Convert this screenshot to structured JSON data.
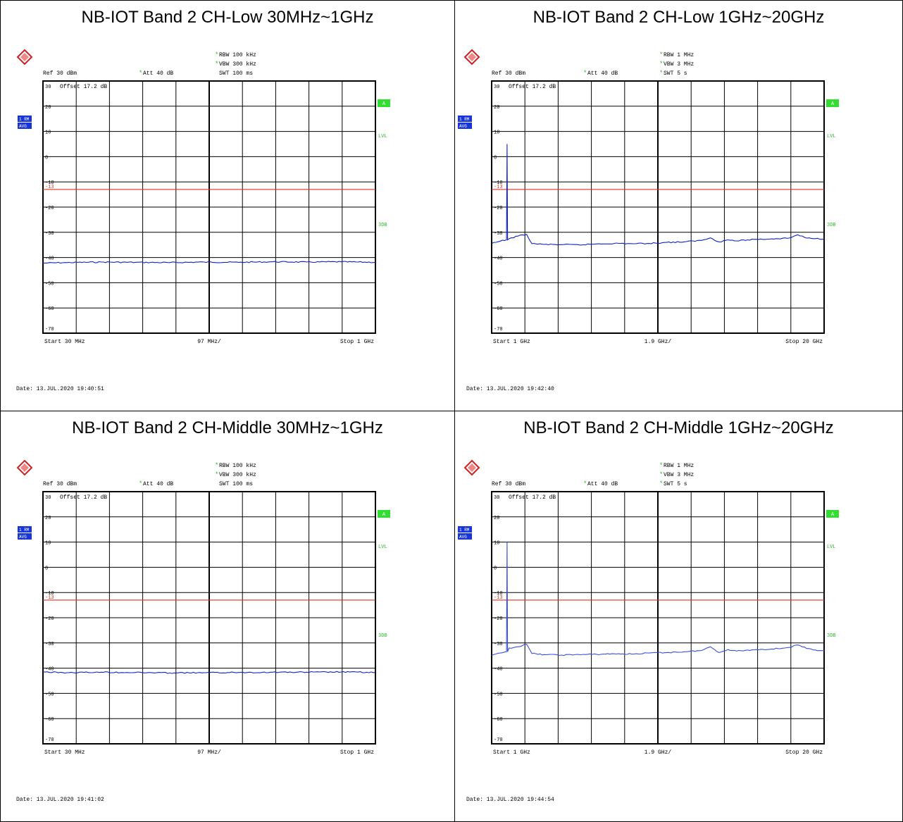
{
  "colors": {
    "trace": "#1020c8",
    "trace_light": "#3a4fd8",
    "limit": "#e03020",
    "grid": "#000000",
    "green_label": "#2ab82a",
    "badge_blue": "#1836d8",
    "badge_green": "#33dd33"
  },
  "panels": [
    {
      "title": "NB-IOT Band 2 CH-Low 30MHz~1GHz",
      "rbw": "RBW 100 kHz",
      "vbw": "VBW 300 kHz",
      "swt": "SWT 100 ms",
      "ref": "Ref  30 dBm",
      "att": "Att  40 dB",
      "offset": "Offset   17.2 dB",
      "start": "Start  30 MHz",
      "div": "97 MHz/",
      "stop": "Stop  1 GHz",
      "date": "Date: 13.JUL.2020  19:40:51",
      "trace_label": "1 RM",
      "detector": "AVG",
      "badge_a": "A",
      "lvl": "LVL",
      "threedb": "3DB",
      "y_ticks": [
        "30",
        "20",
        "10",
        "0",
        "-10",
        "-20",
        "-30",
        "-40",
        "-50",
        "-60",
        "-70"
      ],
      "limit_label": "-13",
      "icon": "rohde-schwarz-logo-icon",
      "chart_data": {
        "type": "line",
        "x_unit": "MHz",
        "x_range": [
          30,
          1000
        ],
        "y_unit": "dBm",
        "ylim": [
          -70,
          30
        ],
        "limit_line": -13,
        "series": [
          {
            "x": [
              30,
              100,
              200,
              300,
              400,
              500,
              600,
              700,
              800,
              900,
              1000
            ],
            "y": [
              -42.2,
              -42.0,
              -41.8,
              -41.9,
              -42.0,
              -41.8,
              -41.9,
              -41.7,
              -41.8,
              -41.7,
              -41.9
            ]
          }
        ]
      }
    },
    {
      "title": "NB-IOT Band 2 CH-Low 1GHz~20GHz",
      "rbw": "RBW 1 MHz",
      "vbw": "VBW 3 MHz",
      "swt": "SWT 5 s",
      "ref": "Ref  30 dBm",
      "att": "Att  40 dB",
      "offset": "Offset   17.2 dB",
      "start": "Start  1 GHz",
      "div": "1.9 GHz/",
      "stop": "Stop  20 GHz",
      "date": "Date: 13.JUL.2020  19:42:40",
      "trace_label": "1 RM",
      "detector": "AVG",
      "badge_a": "A",
      "lvl": "LVL",
      "threedb": "3DB",
      "y_ticks": [
        "30",
        "20",
        "10",
        "0",
        "-10",
        "-20",
        "-30",
        "-40",
        "-50",
        "-60",
        "-70"
      ],
      "limit_label": "-13",
      "icon": "rohde-schwarz-logo-icon",
      "chart_data": {
        "type": "line",
        "x_unit": "GHz",
        "x_range": [
          1,
          20
        ],
        "y_unit": "dBm",
        "ylim": [
          -70,
          30
        ],
        "limit_line": -13,
        "series": [
          {
            "x": [
              1,
              1.5,
              1.85,
              1.88,
              1.91,
              2.0,
              2.5,
              3.0,
              3.3,
              4,
              5,
              6,
              7,
              8,
              9,
              10,
              11,
              12,
              13,
              13.5,
              14,
              14.5,
              15,
              16,
              17,
              18,
              18.5,
              19,
              19.5,
              20
            ],
            "y": [
              -34.5,
              -33.5,
              -33.0,
              5.0,
              -33.0,
              -32.5,
              -31.5,
              -30.8,
              -34.5,
              -34.8,
              -34.9,
              -35.0,
              -34.6,
              -34.4,
              -34.5,
              -34.4,
              -34.0,
              -33.8,
              -33.2,
              -32.2,
              -33.8,
              -33.0,
              -33.4,
              -32.8,
              -32.6,
              -32.3,
              -31.0,
              -32.3,
              -32.5,
              -32.6
            ]
          }
        ]
      }
    },
    {
      "title": "NB-IOT Band 2 CH-Middle 30MHz~1GHz",
      "rbw": "RBW 100 kHz",
      "vbw": "VBW 300 kHz",
      "swt": "SWT 100 ms",
      "ref": "Ref  30 dBm",
      "att": "Att  40 dB",
      "offset": "Offset   17.2 dB",
      "start": "Start  30 MHz",
      "div": "97 MHz/",
      "stop": "Stop  1 GHz",
      "date": "Date: 13.JUL.2020  19:41:02",
      "trace_label": "1 RM",
      "detector": "AVG",
      "badge_a": "A",
      "lvl": "LVL",
      "threedb": "3DB",
      "y_ticks": [
        "30",
        "20",
        "10",
        "0",
        "-10",
        "-20",
        "-30",
        "-40",
        "-50",
        "-60",
        "-70"
      ],
      "limit_label": "-13",
      "icon": "rohde-schwarz-logo-icon",
      "chart_data": {
        "type": "line",
        "x_unit": "MHz",
        "x_range": [
          30,
          1000
        ],
        "y_unit": "dBm",
        "ylim": [
          -70,
          30
        ],
        "limit_line": -13,
        "series": [
          {
            "x": [
              30,
              100,
              200,
              300,
              400,
              500,
              600,
              700,
              800,
              900,
              1000
            ],
            "y": [
              -41.5,
              -41.8,
              -41.6,
              -41.7,
              -41.9,
              -41.8,
              -41.7,
              -41.6,
              -41.6,
              -41.5,
              -41.7
            ]
          }
        ]
      }
    },
    {
      "title": "NB-IOT Band 2 CH-Middle 1GHz~20GHz",
      "rbw": "RBW 1 MHz",
      "vbw": "VBW 3 MHz",
      "swt": "SWT 5 s",
      "ref": "Ref  30 dBm",
      "att": "Att  40 dB",
      "offset": "Offset   17.2 dB",
      "start": "Start  1 GHz",
      "div": "1.9 GHz/",
      "stop": "Stop  20 GHz",
      "date": "Date: 13.JUL.2020  19:44:54",
      "trace_label": "1 RM",
      "detector": "AVG",
      "badge_a": "A",
      "lvl": "LVL",
      "threedb": "3DB",
      "y_ticks": [
        "30",
        "20",
        "10",
        "0",
        "-10",
        "-20",
        "-30",
        "-40",
        "-50",
        "-60",
        "-70"
      ],
      "limit_label": "-13",
      "icon": "rohde-schwarz-logo-icon",
      "chart_data": {
        "type": "line",
        "x_unit": "GHz",
        "x_range": [
          1,
          20
        ],
        "y_unit": "dBm",
        "ylim": [
          -70,
          30
        ],
        "limit_line": -13,
        "series": [
          {
            "x": [
              1,
              1.5,
              1.85,
              1.88,
              1.91,
              2.0,
              2.5,
              3.0,
              3.3,
              4,
              5,
              6,
              7,
              8,
              9,
              10,
              11,
              12,
              13,
              13.5,
              14,
              14.5,
              15,
              16,
              17,
              18,
              18.5,
              19,
              19.5,
              20
            ],
            "y": [
              -35.0,
              -34.0,
              -33.5,
              10.0,
              -33.5,
              -32.0,
              -31.5,
              -30.5,
              -34.2,
              -34.6,
              -34.8,
              -34.6,
              -34.5,
              -34.3,
              -34.4,
              -34.0,
              -33.8,
              -33.5,
              -33.0,
              -31.5,
              -33.8,
              -32.6,
              -33.2,
              -32.7,
              -32.4,
              -31.8,
              -30.8,
              -32.2,
              -32.8,
              -33.0
            ]
          }
        ]
      }
    }
  ]
}
